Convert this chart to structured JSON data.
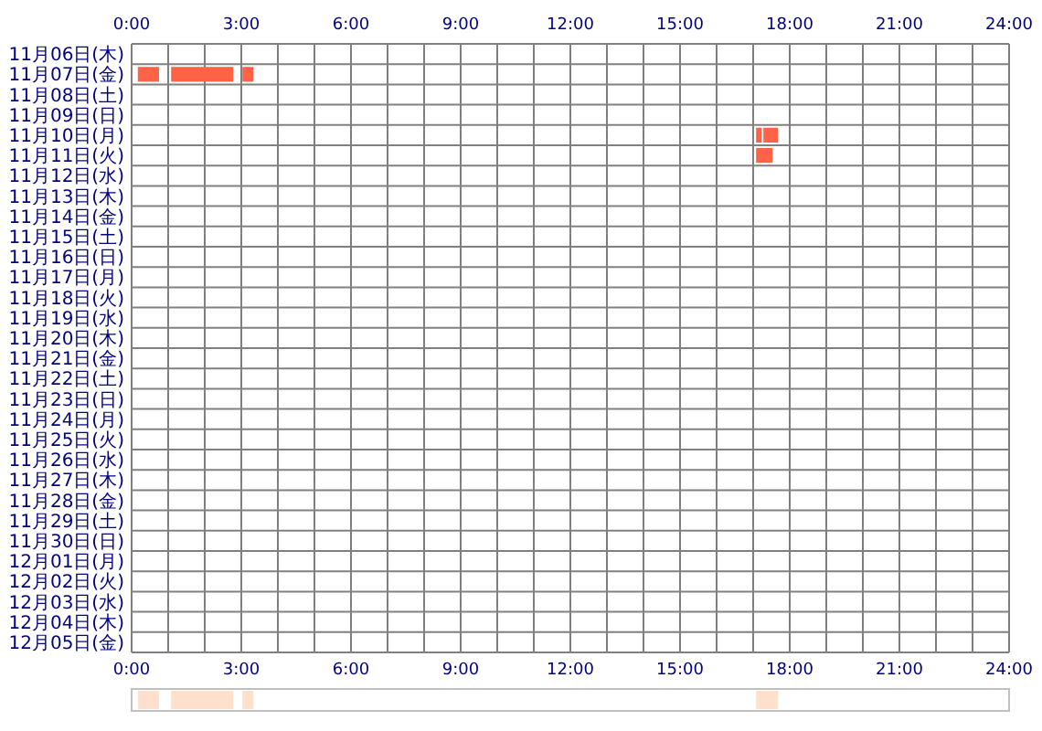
{
  "chart_data": [
    {
      "type": "bar",
      "orientation": "horizontal",
      "categories": [
        "11月06日(木)",
        "11月07日(金)",
        "11月08日(土)",
        "11月09日(日)",
        "11月10日(月)",
        "11月11日(火)",
        "11月12日(水)",
        "11月13日(木)",
        "11月14日(金)",
        "11月15日(土)",
        "11月16日(日)",
        "11月17日(月)",
        "11月18日(火)",
        "11月19日(水)",
        "11月20日(木)",
        "11月21日(金)",
        "11月22日(土)",
        "11月23日(日)",
        "11月24日(月)",
        "11月25日(火)",
        "11月26日(水)",
        "11月27日(木)",
        "11月28日(金)",
        "11月29日(土)",
        "11月30日(日)",
        "12月01日(月)",
        "12月02日(火)",
        "12月03日(水)",
        "12月04日(木)",
        "12月05日(金)"
      ],
      "series": [
        {
          "color": "#ff6347",
          "base": [
            null,
            0.17,
            null,
            null,
            17.08,
            17.08,
            null,
            null,
            null,
            null,
            null,
            null,
            null,
            null,
            null,
            null,
            null,
            null,
            null,
            null,
            null,
            null,
            null,
            null,
            null,
            null,
            null,
            null,
            null,
            null
          ],
          "values": [
            null,
            0.58,
            null,
            null,
            0.15,
            0.45,
            null,
            null,
            null,
            null,
            null,
            null,
            null,
            null,
            null,
            null,
            null,
            null,
            null,
            null,
            null,
            null,
            null,
            null,
            null,
            null,
            null,
            null,
            null,
            null
          ]
        },
        {
          "color": "#ff6347",
          "base": [
            null,
            1.08,
            null,
            null,
            17.28,
            null,
            null,
            null,
            null,
            null,
            null,
            null,
            null,
            null,
            null,
            null,
            null,
            null,
            null,
            null,
            null,
            null,
            null,
            null,
            null,
            null,
            null,
            null,
            null,
            null
          ],
          "values": [
            null,
            1.7,
            null,
            null,
            0.4,
            null,
            null,
            null,
            null,
            null,
            null,
            null,
            null,
            null,
            null,
            null,
            null,
            null,
            null,
            null,
            null,
            null,
            null,
            null,
            null,
            null,
            null,
            null,
            null,
            null
          ]
        },
        {
          "color": "#ff6347",
          "base": [
            null,
            3.03,
            null,
            null,
            null,
            null,
            null,
            null,
            null,
            null,
            null,
            null,
            null,
            null,
            null,
            null,
            null,
            null,
            null,
            null,
            null,
            null,
            null,
            null,
            null,
            null,
            null,
            null,
            null,
            null
          ],
          "values": [
            null,
            0.3,
            null,
            null,
            null,
            null,
            null,
            null,
            null,
            null,
            null,
            null,
            null,
            null,
            null,
            null,
            null,
            null,
            null,
            null,
            null,
            null,
            null,
            null,
            null,
            null,
            null,
            null,
            null,
            null
          ]
        }
      ],
      "xlim": [
        0,
        24
      ],
      "xticks": [
        {
          "value": 0,
          "label": "0:00"
        },
        {
          "value": 3,
          "label": "3:00"
        },
        {
          "value": 6,
          "label": "6:00"
        },
        {
          "value": 9,
          "label": "9:00"
        },
        {
          "value": 12,
          "label": "12:00"
        },
        {
          "value": 15,
          "label": "15:00"
        },
        {
          "value": 18,
          "label": "18:00"
        },
        {
          "value": 21,
          "label": "21:00"
        },
        {
          "value": 24,
          "label": "24:00"
        }
      ],
      "x2lim": [
        0,
        24
      ],
      "x2ticks": [
        {
          "value": 0,
          "label": "0:00"
        },
        {
          "value": 3,
          "label": "3:00"
        },
        {
          "value": 6,
          "label": "6:00"
        },
        {
          "value": 9,
          "label": "9:00"
        },
        {
          "value": 12,
          "label": "12:00"
        },
        {
          "value": 15,
          "label": "15:00"
        },
        {
          "value": 18,
          "label": "18:00"
        },
        {
          "value": 21,
          "label": "21:00"
        },
        {
          "value": 24,
          "label": "24:00"
        }
      ],
      "grid": true
    },
    {
      "type": "bar",
      "orientation": "horizontal",
      "categories": [
        null
      ],
      "xlim": [
        0,
        24
      ],
      "series": [
        {
          "color": "#ffe0cc",
          "base": [
            0.17
          ],
          "values": [
            0.58
          ]
        },
        {
          "color": "#ffe0cc",
          "base": [
            1.08
          ],
          "values": [
            1.7
          ]
        },
        {
          "color": "#ffe0cc",
          "base": [
            3.03
          ],
          "values": [
            0.3
          ]
        },
        {
          "color": "#ffe0cc",
          "base": [
            17.08
          ],
          "values": [
            0.6
          ]
        }
      ]
    }
  ]
}
